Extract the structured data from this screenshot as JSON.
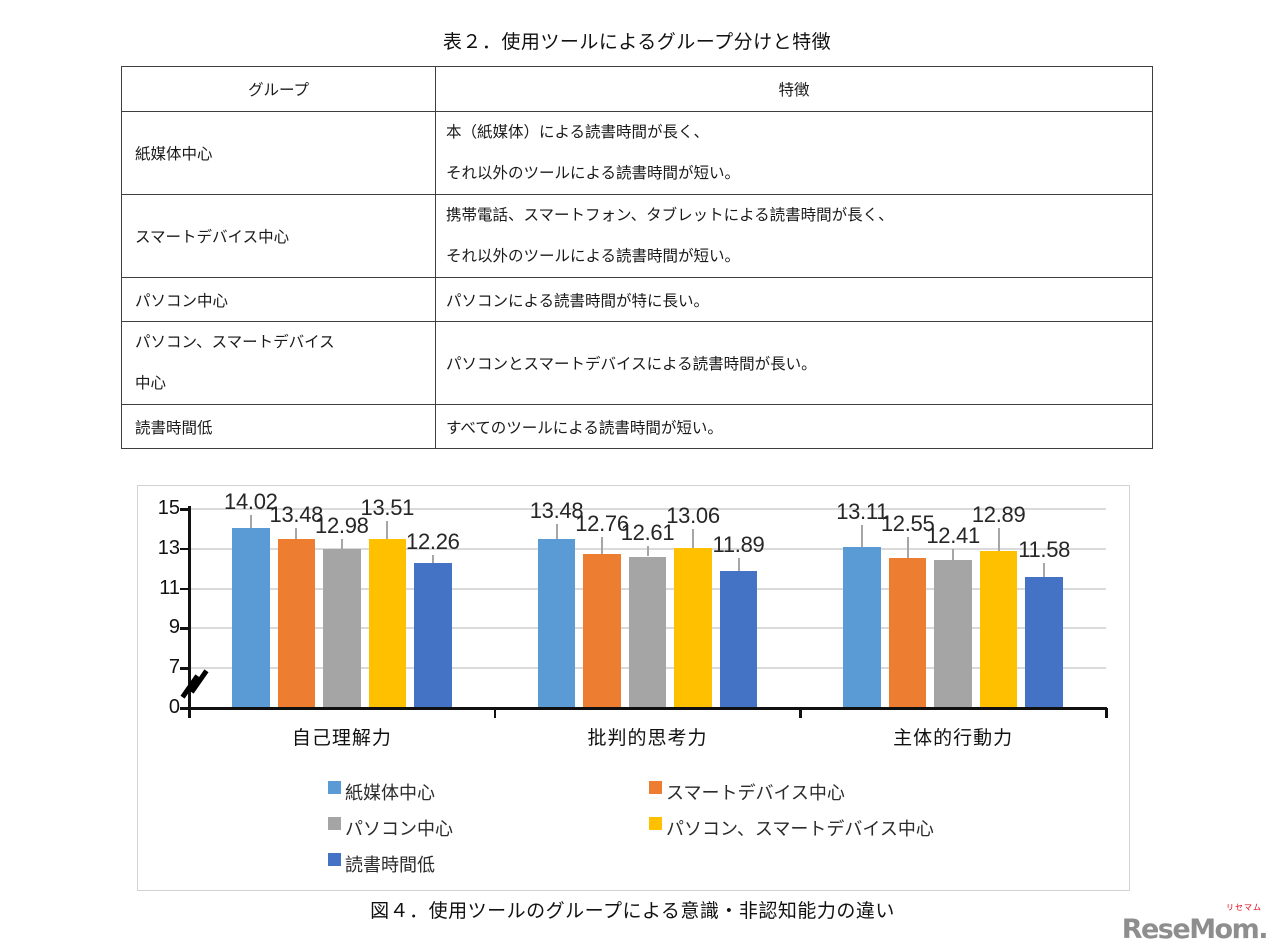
{
  "table": {
    "title": "表２．使用ツールによるグループ分けと特徴",
    "headers": [
      "グループ",
      "特徴"
    ],
    "rows": [
      {
        "group": [
          "紙媒体中心"
        ],
        "feature": [
          "本（紙媒体）による読書時間が長く、",
          "それ以外のツールによる読書時間が短い。"
        ]
      },
      {
        "group": [
          "スマートデバイス中心"
        ],
        "feature": [
          "携帯電話、スマートフォン、タブレットによる読書時間が長く、",
          "それ以外のツールによる読書時間が短い。"
        ]
      },
      {
        "group": [
          "パソコン中心"
        ],
        "feature": [
          "パソコンによる読書時間が特に長い。"
        ]
      },
      {
        "group": [
          "パソコン、スマートデバイス",
          "中心"
        ],
        "feature": [
          "パソコンとスマートデバイスによる読書時間が長い。"
        ]
      },
      {
        "group": [
          "読書時間低"
        ],
        "feature": [
          "すべてのツールによる読書時間が短い。"
        ]
      }
    ]
  },
  "chart_data": {
    "type": "bar",
    "caption": "図４．使用ツールのグループによる意識・非認知能力の違い",
    "categories": [
      "自己理解力",
      "批判的思考力",
      "主体的行動力"
    ],
    "series": [
      {
        "name": "紙媒体中心",
        "color": "#5B9BD5",
        "values": [
          14.02,
          13.48,
          13.11
        ],
        "errors": [
          0.7,
          0.75,
          1.1
        ]
      },
      {
        "name": "スマートデバイス中心",
        "color": "#ED7D31",
        "values": [
          13.48,
          12.76,
          12.55
        ],
        "errors": [
          0.55,
          0.85,
          1.05
        ]
      },
      {
        "name": "パソコン中心",
        "color": "#A5A5A5",
        "values": [
          12.98,
          12.61,
          12.41
        ],
        "errors": [
          0.5,
          0.55,
          0.6
        ]
      },
      {
        "name": "パソコン、スマートデバイス中心",
        "color": "#FFC000",
        "values": [
          13.51,
          13.06,
          12.89
        ],
        "errors": [
          0.9,
          0.95,
          1.15
        ]
      },
      {
        "name": "読書時間低",
        "color": "#4472C4",
        "values": [
          12.26,
          11.89,
          11.58
        ],
        "errors": [
          0.45,
          0.65,
          0.7
        ]
      }
    ],
    "y_axis": {
      "tick_values": [
        0,
        7,
        9,
        11,
        13,
        15
      ],
      "range_top": 15,
      "axis_break_between": [
        0,
        7
      ]
    },
    "grid": true,
    "data_labels": true,
    "error_bars": true,
    "legend_position": "bottom"
  },
  "logo": {
    "text": "ReseMom.",
    "ruby": "リセマム"
  },
  "colors": {
    "grid": "#DADADA",
    "axis": "#111111",
    "error_bar": "#A6A6A6"
  }
}
